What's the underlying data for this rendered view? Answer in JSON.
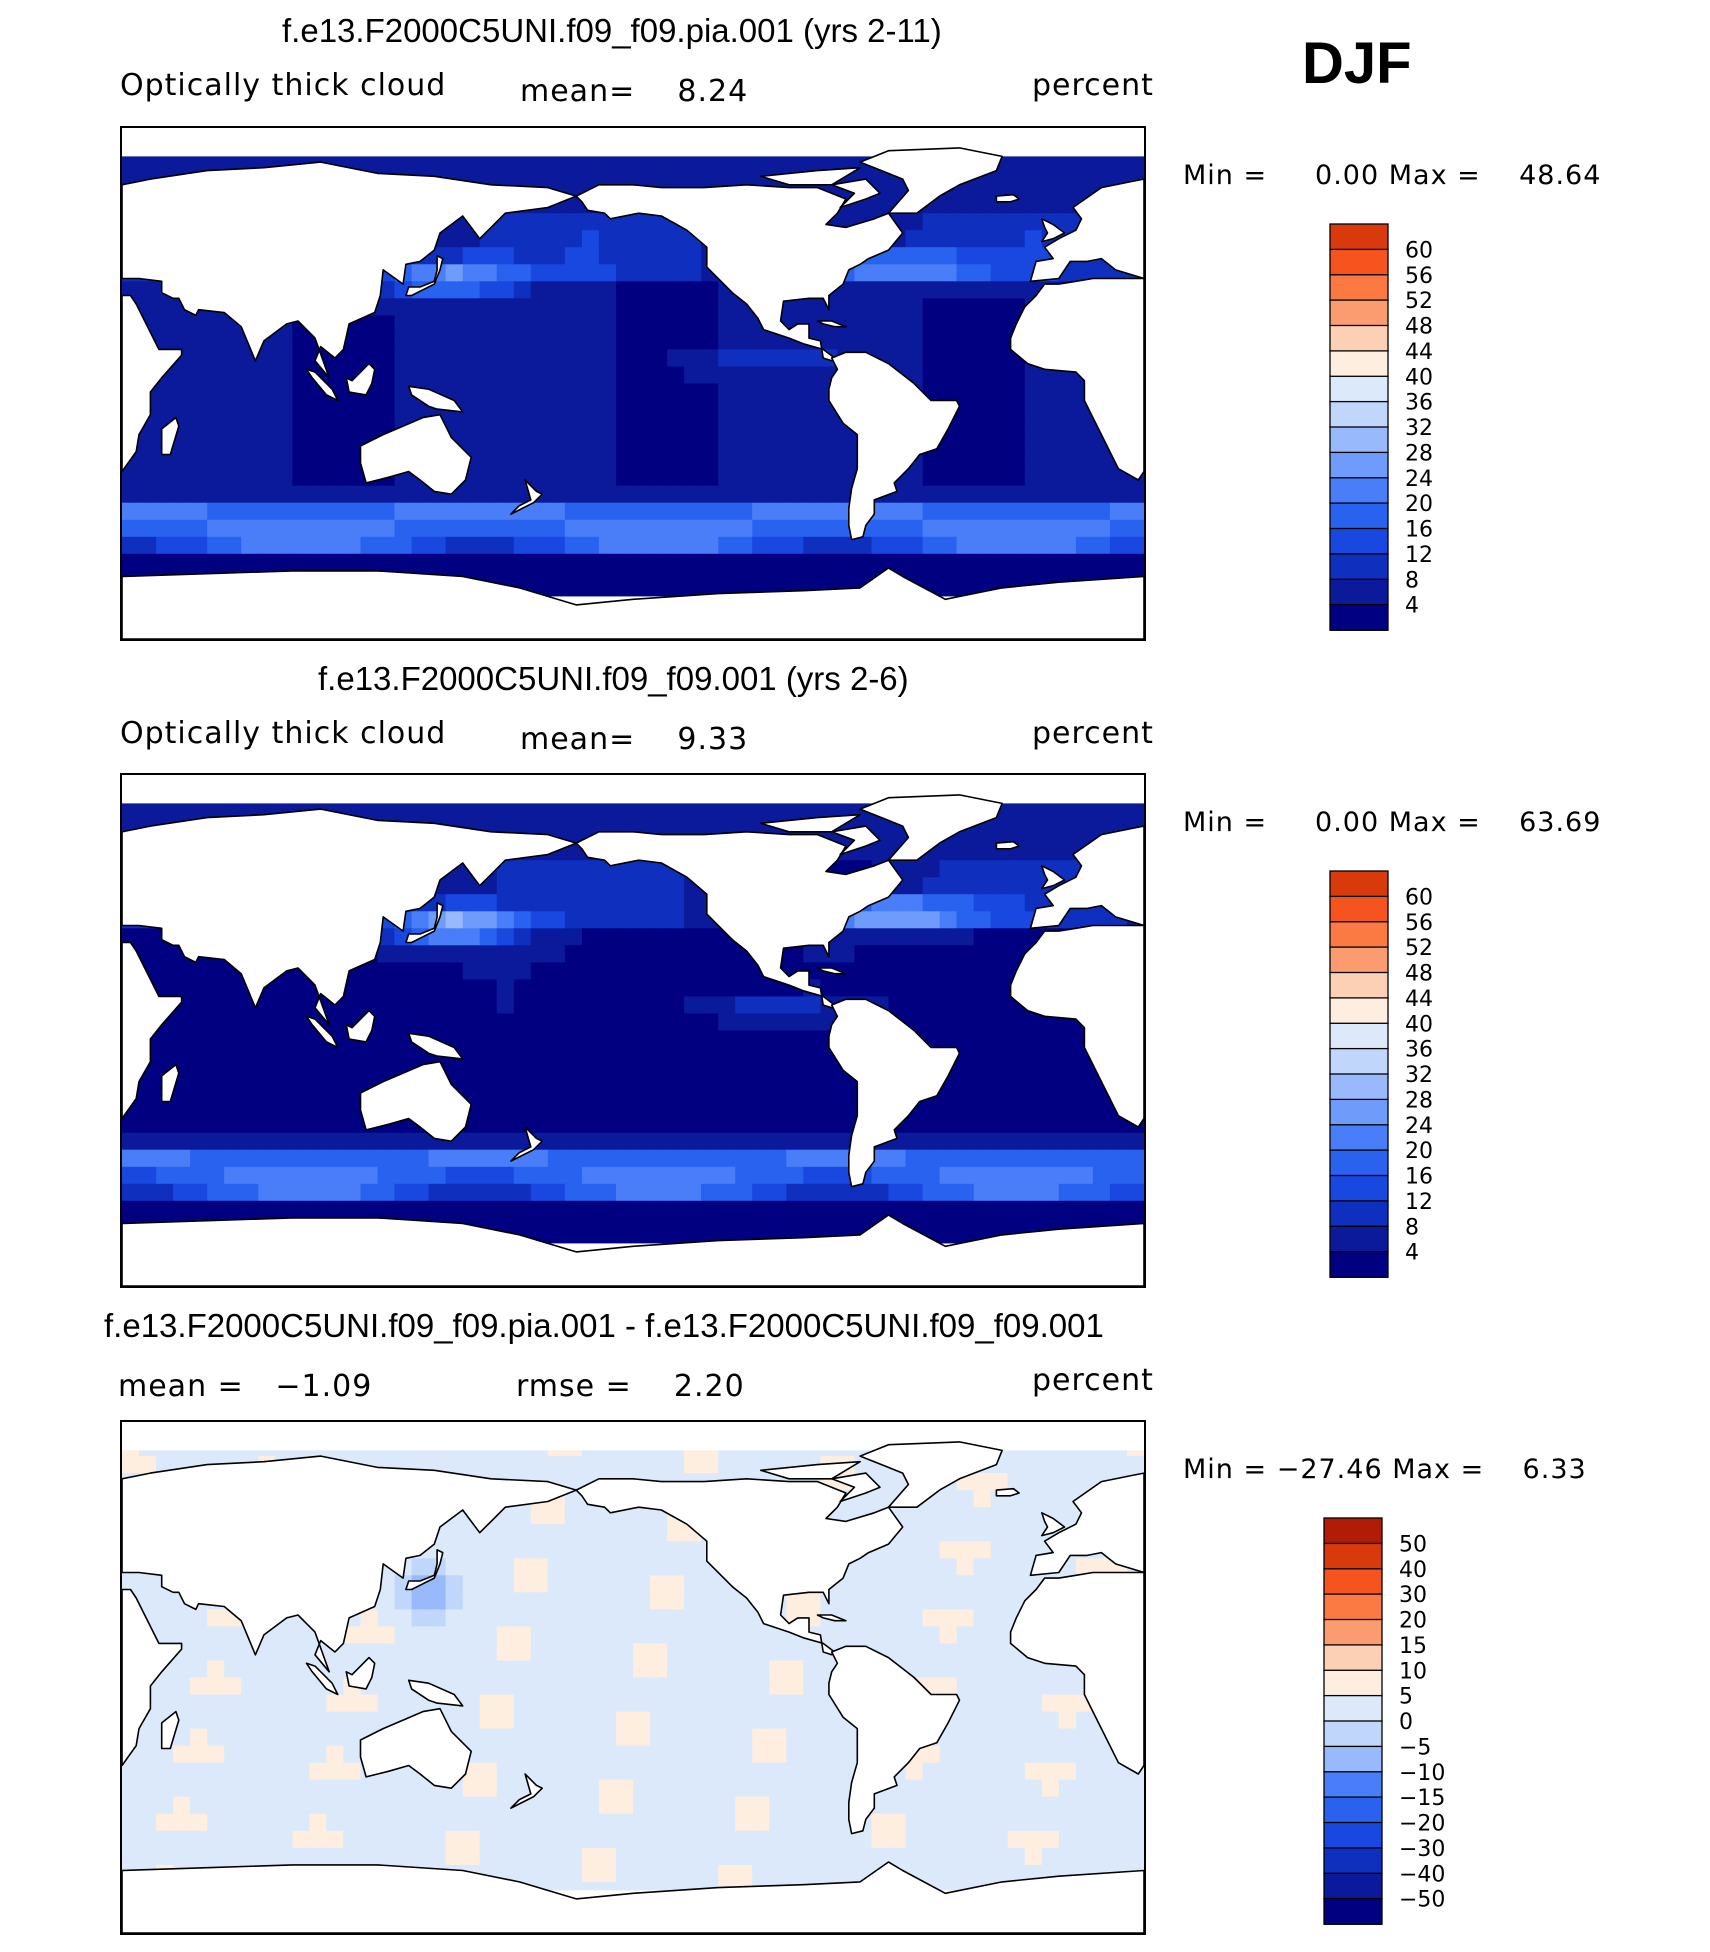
{
  "season": "DJF",
  "colors": {
    "blues_scale": [
      "#000080",
      "#0a1a9a",
      "#0f2fbf",
      "#1848e0",
      "#2a62f0",
      "#4a7ef8",
      "#6f9cfb",
      "#98b9fb",
      "#c0d6fa",
      "#dbe9fb",
      "#fdeee0",
      "#fbd0b4",
      "#fb9c70",
      "#fb7a44",
      "#f5541e",
      "#d83a0c",
      "#b01c06",
      "#800000"
    ],
    "diff_scale": [
      "#000080",
      "#0a1a9a",
      "#0f2fbf",
      "#1848e0",
      "#2a62f0",
      "#4a7ef8",
      "#98b9fb",
      "#c0d6fa",
      "#dbe9fb",
      "#fdeee0",
      "#fbd0b4",
      "#fb9c70",
      "#fb7a44",
      "#f5541e",
      "#d83a0c",
      "#b01c06",
      "#800000"
    ],
    "land": "#ffffff",
    "coast": "#000000"
  },
  "panels": [
    {
      "title": "f.e13.F2000C5UNI.f09_f09.pia.001 (yrs 2-11)",
      "left_text": "Optically thick cloud",
      "mid_text": "mean=    8.24",
      "right_text": "percent",
      "minmax": "Min =     0.00 Max =    48.64",
      "colorbar_labels": [
        "60",
        "56",
        "52",
        "48",
        "44",
        "40",
        "36",
        "32",
        "28",
        "24",
        "20",
        "16",
        "12",
        "8",
        "4"
      ],
      "field_kind": "base1"
    },
    {
      "title": "f.e13.F2000C5UNI.f09_f09.001 (yrs 2-6)",
      "left_text": "Optically thick cloud",
      "mid_text": "mean=    9.33",
      "right_text": "percent",
      "minmax": "Min =     0.00 Max =    63.69",
      "colorbar_labels": [
        "60",
        "56",
        "52",
        "48",
        "44",
        "40",
        "36",
        "32",
        "28",
        "24",
        "20",
        "16",
        "12",
        "8",
        "4"
      ],
      "field_kind": "base2"
    },
    {
      "title": "f.e13.F2000C5UNI.f09_f09.pia.001 - f.e13.F2000C5UNI.f09_f09.001",
      "left_text": "mean =   −1.09",
      "mid_text": "rmse =    2.20",
      "right_text": "percent",
      "minmax": "Min = −27.46 Max =    6.33",
      "colorbar_labels": [
        "50",
        "40",
        "30",
        "20",
        "15",
        "10",
        "5",
        "0",
        "−5",
        "−10",
        "−15",
        "−20",
        "−30",
        "−40",
        "−50"
      ],
      "field_kind": "diff"
    }
  ]
}
